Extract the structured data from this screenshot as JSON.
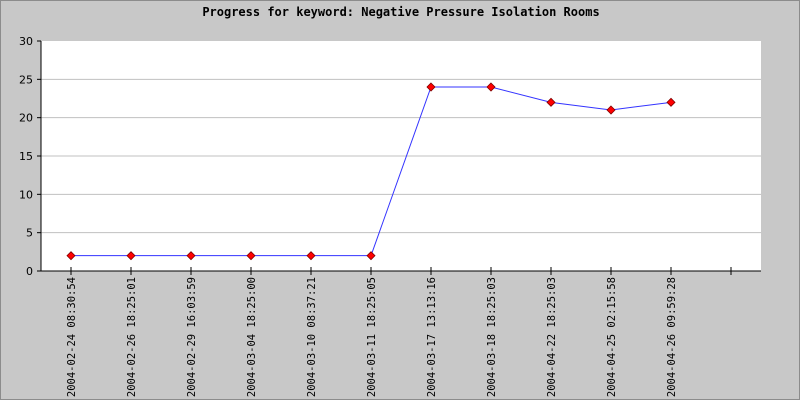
{
  "chart_data": {
    "type": "line",
    "title": "Progress for keyword: Negative Pressure Isolation Rooms",
    "xlabel": "",
    "ylabel": "",
    "categories": [
      "2004-02-24 08:30:54",
      "2004-02-26 18:25:01",
      "2004-02-29 16:03:59",
      "2004-03-04 18:25:00",
      "2004-03-10 08:37:21",
      "2004-03-11 18:25:05",
      "2004-03-17 13:13:16",
      "2004-03-18 18:25:03",
      "2004-04-22 18:25:03",
      "2004-04-25 02:15:58",
      "2004-04-26 09:59:28"
    ],
    "series": [
      {
        "values": [
          2,
          2,
          2,
          2,
          2,
          2,
          24,
          24,
          22,
          21,
          22
        ]
      }
    ],
    "ylim": [
      0,
      30
    ],
    "yticks": [
      0,
      5,
      10,
      15,
      20,
      25,
      30
    ],
    "grid": true,
    "legend": "none",
    "line_color": "#3333ff",
    "marker_color": "#ff0000",
    "background_color": "#c8c8c8",
    "plot_background": "#ffffff",
    "grid_color": "#c0c0c0"
  }
}
